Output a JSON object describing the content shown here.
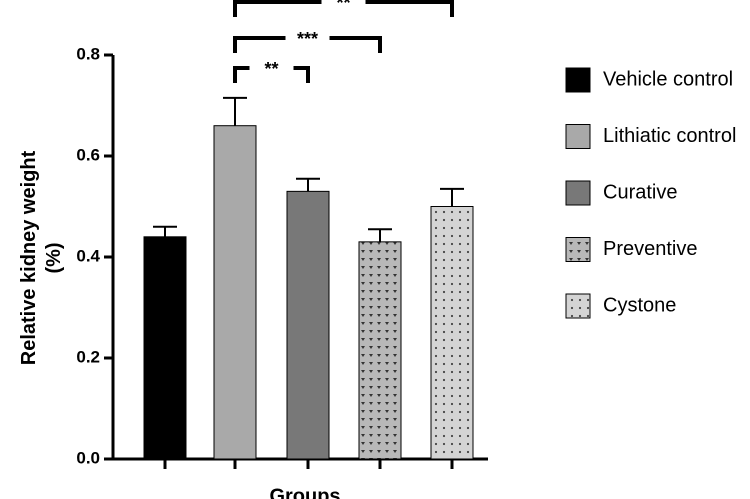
{
  "chart_data": {
    "type": "bar",
    "y_label": [
      "Relative kidney weight",
      "(%)"
    ],
    "x_label": "Groups",
    "categories": [
      "Vehicle control",
      "Lithiatic control",
      "Curative",
      "Preventive",
      "Cystone"
    ],
    "values": [
      0.44,
      0.66,
      0.53,
      0.43,
      0.5
    ],
    "errors": [
      0.02,
      0.055,
      0.025,
      0.025,
      0.035
    ],
    "colors": [
      "#000000",
      "#a9a9a9",
      "#787878",
      "#b8b8b8",
      "#d4d4d4"
    ],
    "patterns": [
      "solid",
      "solid",
      "solid",
      "triangles",
      "dots"
    ],
    "significance": [
      "**",
      "***",
      "**"
    ],
    "ylim": [
      0,
      0.8
    ],
    "yticks": [
      {
        "value": 0,
        "label": "0.0"
      },
      0.2,
      0.4,
      0.6,
      0.8
    ],
    "legend": "right"
  }
}
